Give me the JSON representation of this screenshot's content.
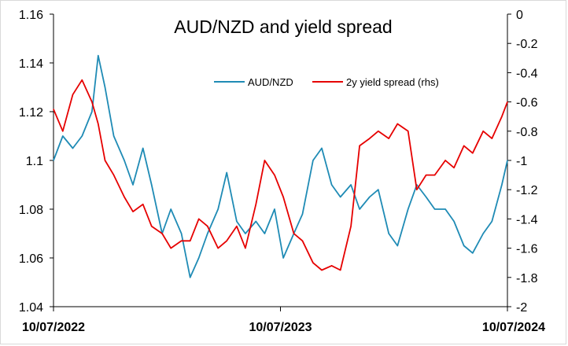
{
  "chart_data": {
    "type": "line",
    "title": "AUD/NZD and yield spread",
    "xlabel": "",
    "ylabel": "",
    "x_tick_labels": [
      "10/07/2022",
      "10/07/2023",
      "10/07/2024"
    ],
    "x_range": [
      "2022-07-10",
      "2024-07-10"
    ],
    "y_left": {
      "lim": [
        1.04,
        1.16
      ],
      "ticks": [
        "1.04",
        "1.06",
        "1.08",
        "1.1",
        "1.12",
        "1.14",
        "1.16"
      ]
    },
    "y_right": {
      "lim": [
        -2,
        0
      ],
      "ticks": [
        "-2",
        "-1.8",
        "-1.6",
        "-1.4",
        "-1.2",
        "-1",
        "-0.8",
        "-0.6",
        "-0.4",
        "-0.2",
        "0"
      ]
    },
    "grid": false,
    "legend_position": "top-center",
    "series": [
      {
        "name": "AUD/NZD",
        "axis": "left",
        "color": "#1f8bb5",
        "x": [
          "2022-07-10",
          "2022-07-25",
          "2022-08-10",
          "2022-08-25",
          "2022-09-10",
          "2022-09-20",
          "2022-10-01",
          "2022-10-15",
          "2022-11-01",
          "2022-11-15",
          "2022-12-01",
          "2022-12-15",
          "2023-01-01",
          "2023-01-15",
          "2023-02-01",
          "2023-02-15",
          "2023-03-01",
          "2023-03-15",
          "2023-04-01",
          "2023-04-15",
          "2023-05-01",
          "2023-05-15",
          "2023-06-01",
          "2023-06-15",
          "2023-07-01",
          "2023-07-15",
          "2023-08-01",
          "2023-08-15",
          "2023-09-01",
          "2023-09-15",
          "2023-10-01",
          "2023-10-15",
          "2023-11-01",
          "2023-11-15",
          "2023-12-01",
          "2023-12-15",
          "2024-01-01",
          "2024-01-15",
          "2024-02-01",
          "2024-02-15",
          "2024-03-01",
          "2024-03-15",
          "2024-04-01",
          "2024-04-15",
          "2024-05-01",
          "2024-05-15",
          "2024-06-01",
          "2024-06-15",
          "2024-07-01",
          "2024-07-10"
        ],
        "values": [
          1.1,
          1.11,
          1.105,
          1.11,
          1.12,
          1.143,
          1.13,
          1.11,
          1.1,
          1.09,
          1.105,
          1.09,
          1.07,
          1.08,
          1.07,
          1.052,
          1.06,
          1.07,
          1.08,
          1.095,
          1.075,
          1.07,
          1.075,
          1.07,
          1.08,
          1.06,
          1.07,
          1.078,
          1.1,
          1.105,
          1.09,
          1.085,
          1.09,
          1.08,
          1.085,
          1.088,
          1.07,
          1.065,
          1.08,
          1.09,
          1.085,
          1.08,
          1.08,
          1.075,
          1.065,
          1.062,
          1.07,
          1.075,
          1.09,
          1.1
        ]
      },
      {
        "name": "2y yield spread (rhs)",
        "axis": "right",
        "color": "#e60000",
        "x": [
          "2022-07-10",
          "2022-07-25",
          "2022-08-10",
          "2022-08-25",
          "2022-09-10",
          "2022-09-20",
          "2022-10-01",
          "2022-10-15",
          "2022-11-01",
          "2022-11-15",
          "2022-12-01",
          "2022-12-15",
          "2023-01-01",
          "2023-01-15",
          "2023-02-01",
          "2023-02-15",
          "2023-03-01",
          "2023-03-15",
          "2023-04-01",
          "2023-04-15",
          "2023-05-01",
          "2023-05-15",
          "2023-06-01",
          "2023-06-15",
          "2023-07-01",
          "2023-07-15",
          "2023-08-01",
          "2023-08-15",
          "2023-09-01",
          "2023-09-15",
          "2023-10-01",
          "2023-10-15",
          "2023-11-01",
          "2023-11-15",
          "2023-12-01",
          "2023-12-15",
          "2024-01-01",
          "2024-01-15",
          "2024-02-01",
          "2024-02-15",
          "2024-03-01",
          "2024-03-15",
          "2024-04-01",
          "2024-04-15",
          "2024-05-01",
          "2024-05-15",
          "2024-06-01",
          "2024-06-15",
          "2024-07-01",
          "2024-07-10"
        ],
        "values": [
          -0.65,
          -0.8,
          -0.55,
          -0.45,
          -0.6,
          -0.75,
          -1.0,
          -1.1,
          -1.25,
          -1.35,
          -1.3,
          -1.45,
          -1.5,
          -1.6,
          -1.55,
          -1.55,
          -1.4,
          -1.45,
          -1.6,
          -1.55,
          -1.45,
          -1.6,
          -1.3,
          -1.0,
          -1.1,
          -1.25,
          -1.5,
          -1.55,
          -1.7,
          -1.75,
          -1.72,
          -1.75,
          -1.45,
          -0.9,
          -0.85,
          -0.8,
          -0.85,
          -0.75,
          -0.8,
          -1.2,
          -1.1,
          -1.1,
          -1.0,
          -1.05,
          -0.9,
          -0.95,
          -0.8,
          -0.85,
          -0.7,
          -0.6
        ]
      }
    ]
  }
}
